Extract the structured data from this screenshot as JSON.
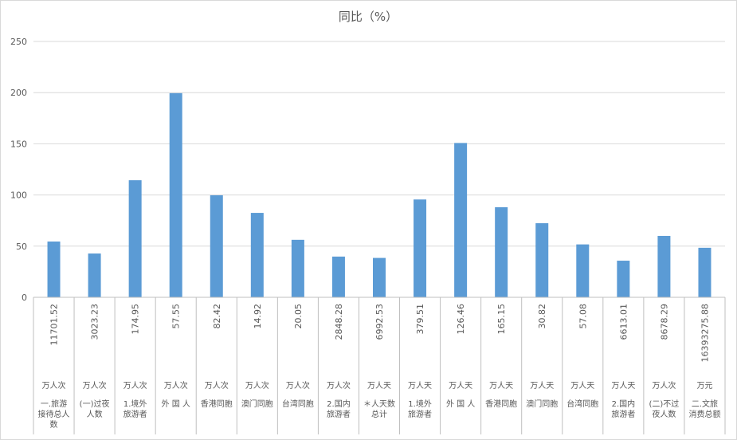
{
  "chart_data": {
    "type": "bar",
    "title": "同比（%）",
    "ylim": [
      0,
      250
    ],
    "yticks": [
      0,
      50,
      100,
      150,
      200,
      250
    ],
    "grid": true,
    "legend": "none",
    "colors": {
      "bar": "#5b9bd5",
      "grid": "#d9d9d9",
      "axis": "#bfbfbf",
      "text": "#595959"
    },
    "categories": [
      {
        "value_label": "11701.52",
        "unit": "万人次",
        "name_lines": [
          "一.旅游",
          "接待总人",
          "数"
        ]
      },
      {
        "value_label": "3023.23",
        "unit": "万人次",
        "name_lines": [
          "(一)过夜",
          "人数"
        ]
      },
      {
        "value_label": "174.95",
        "unit": "万人次",
        "name_lines": [
          "1.境外",
          "旅游者"
        ]
      },
      {
        "value_label": "57.55",
        "unit": "万人次",
        "name_lines": [
          "外 国 人"
        ]
      },
      {
        "value_label": "82.42",
        "unit": "万人次",
        "name_lines": [
          "香港同胞"
        ]
      },
      {
        "value_label": "14.92",
        "unit": "万人次",
        "name_lines": [
          "澳门同胞"
        ]
      },
      {
        "value_label": "20.05",
        "unit": "万人次",
        "name_lines": [
          "台湾同胞"
        ]
      },
      {
        "value_label": "2848.28",
        "unit": "万人次",
        "name_lines": [
          "2.国内",
          "旅游者"
        ]
      },
      {
        "value_label": "6992.53",
        "unit": "万人天",
        "name_lines": [
          "＊人天数",
          "总计"
        ]
      },
      {
        "value_label": "379.51",
        "unit": "万人天",
        "name_lines": [
          "1.境外",
          "旅游者"
        ]
      },
      {
        "value_label": "126.46",
        "unit": "万人天",
        "name_lines": [
          "外 国 人"
        ]
      },
      {
        "value_label": "165.15",
        "unit": "万人天",
        "name_lines": [
          "香港同胞"
        ]
      },
      {
        "value_label": "30.82",
        "unit": "万人天",
        "name_lines": [
          "澳门同胞"
        ]
      },
      {
        "value_label": "57.08",
        "unit": "万人天",
        "name_lines": [
          "台湾同胞"
        ]
      },
      {
        "value_label": "6613.01",
        "unit": "万人天",
        "name_lines": [
          "2.国内",
          "旅游者"
        ]
      },
      {
        "value_label": "8678.29",
        "unit": "万人次",
        "name_lines": [
          "(二)不过",
          "夜人数"
        ]
      },
      {
        "value_label": "16393275.88",
        "unit": "万元",
        "name_lines": [
          "二.文旅",
          "消费总额"
        ]
      }
    ],
    "series": [
      {
        "values": [
          54.5,
          42.8,
          114.4,
          199.5,
          99.7,
          82.5,
          56.2,
          39.8,
          38.5,
          95.6,
          150.8,
          88.0,
          72.4,
          51.7,
          35.8,
          60.0,
          48.4
        ]
      }
    ]
  }
}
